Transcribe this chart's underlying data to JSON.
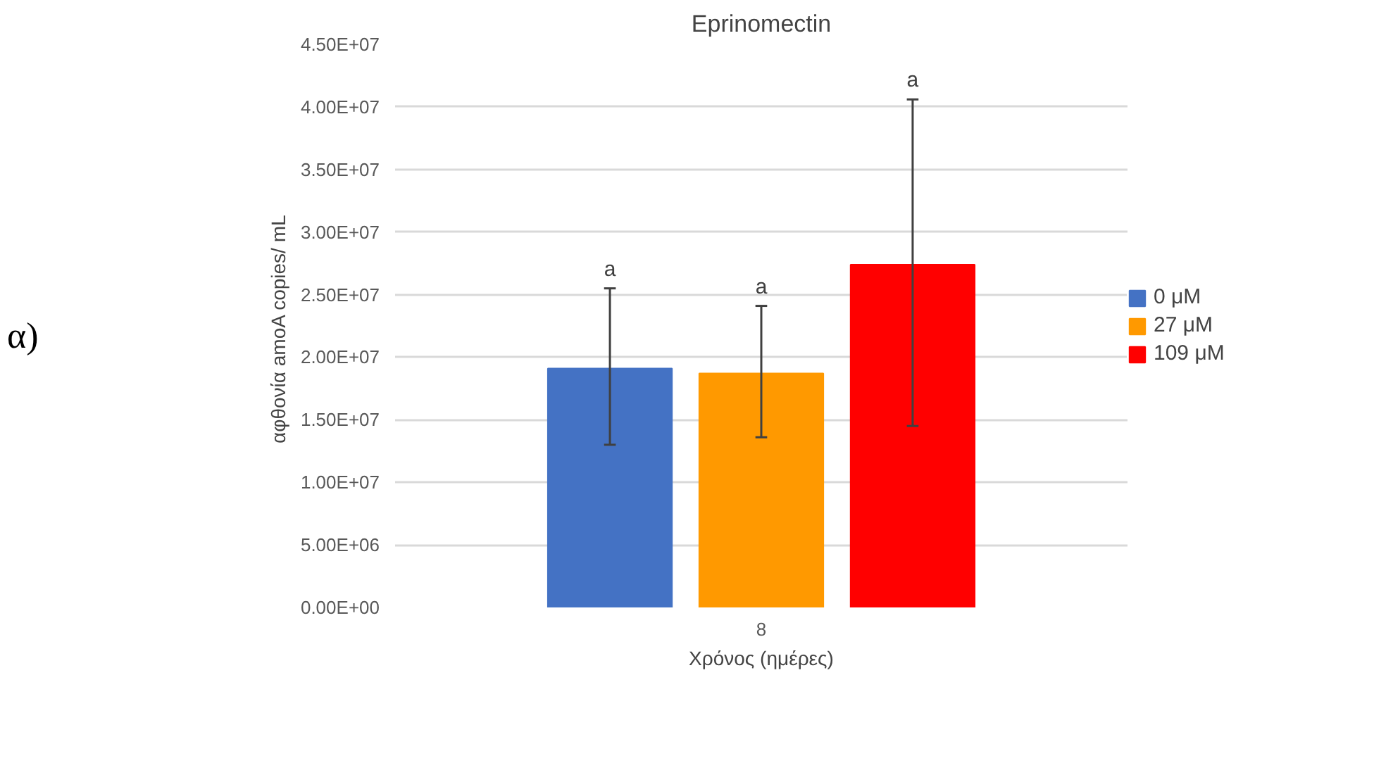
{
  "chart_data": {
    "type": "bar",
    "title": "Eprinomectin",
    "xlabel": "Χρόνος (ημέρες)",
    "ylabel": "αφθονία  amoA copies/ mL",
    "annotations": [
      "α)",
      "a",
      "a",
      "a"
    ],
    "categories": [
      "8"
    ],
    "series": [
      {
        "name": "0 μM",
        "color": "#4472c4",
        "values": [
          19100000.0
        ],
        "errors": [
          [
            13000000.0,
            25500000.0
          ]
        ]
      },
      {
        "name": "27 μM",
        "color": "#ff9900",
        "values": [
          18700000.0
        ],
        "errors": [
          [
            13600000.0,
            24100000.0
          ]
        ]
      },
      {
        "name": "109 μM",
        "color": "#ff0000",
        "values": [
          27400000.0
        ],
        "errors": [
          [
            14500000.0,
            40600000.0
          ]
        ]
      }
    ],
    "ylim": [
      0,
      45000000.0
    ],
    "yticks": [
      {
        "value": 0,
        "label": "0.00E+00"
      },
      {
        "value": 5000000.0,
        "label": "5.00E+06"
      },
      {
        "value": 10000000.0,
        "label": "1.00E+07"
      },
      {
        "value": 15000000.0,
        "label": "1.50E+07"
      },
      {
        "value": 20000000.0,
        "label": "2.00E+07"
      },
      {
        "value": 25000000.0,
        "label": "2.50E+07"
      },
      {
        "value": 30000000.0,
        "label": "3.00E+07"
      },
      {
        "value": 35000000.0,
        "label": "3.50E+07"
      },
      {
        "value": 40000000.0,
        "label": "4.00E+07"
      },
      {
        "value": 45000000.0,
        "label": "4.50E+07"
      }
    ],
    "grid": "y",
    "legend": "right"
  }
}
